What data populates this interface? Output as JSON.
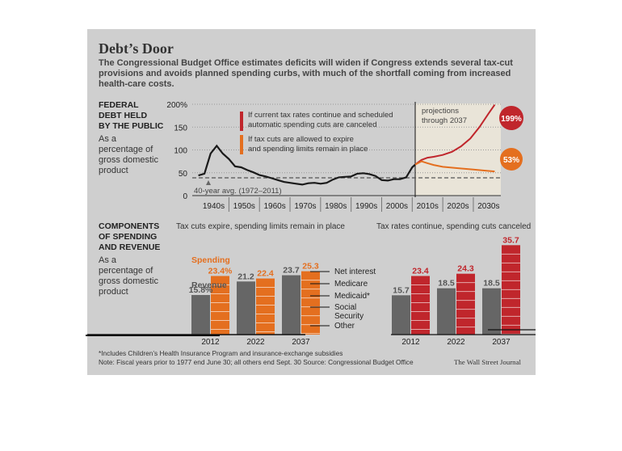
{
  "title": "Debt’s Door",
  "subtitle": "The Congressional Budget Office estimates deficits will widen if Congress extends several tax-cut provisions and avoids planned spending curbs, with much of the shortfall coming from increased health-care costs.",
  "debt_section": {
    "heading_lines": [
      "FEDERAL",
      "DEBT HELD",
      "BY THE PUBLIC"
    ],
    "desc_lines": [
      "As a",
      "percentage of",
      "gross domestic",
      "product"
    ]
  },
  "legend": {
    "red_lines": [
      "If current tax rates continue and scheduled",
      "automatic spending cuts are canceled"
    ],
    "orange_lines": [
      "If tax cuts are allowed to expire",
      "and spending limits remain in place"
    ]
  },
  "projections_lines": [
    "projections",
    "through 2037"
  ],
  "avg_label": "40-year avg. (1972–2011)",
  "components_section": {
    "heading_lines": [
      "COMPONENTS",
      "OF SPENDING",
      "AND REVENUE"
    ],
    "desc_lines": [
      "As a",
      "percentage of",
      "gross domestic",
      "product"
    ],
    "left_title": "Tax cuts expire, spending limits remain in place",
    "right_title": "Tax rates continue, spending cuts canceled",
    "revenue_label": "Revenue",
    "spending_label": "Spending",
    "components": [
      "Net interest",
      "Medicare",
      "Medicaid*",
      "Social Security",
      "Other"
    ]
  },
  "footnotes": {
    "line1": "*Includes Children’s Health Insurance Program and insurance-exchange subsidies",
    "line2": "Note: Fiscal years prior to 1977 end June 30; all others end Sept. 30   Source: Congressional Budget Office",
    "credit": "The Wall Street Journal"
  },
  "colors": {
    "red": "#c0262c",
    "orange": "#e46f1f",
    "revenue_gray": "#666666",
    "line_black": "#1a1a1a",
    "panel_bg": "#cfcfcf"
  },
  "chart_data": [
    {
      "type": "line",
      "title": "FEDERAL DEBT HELD BY THE PUBLIC",
      "ylabel": "As a percentage of gross domestic product",
      "ylim": [
        0,
        200
      ],
      "yticks": [
        "200%",
        "150",
        "100",
        "50",
        "0"
      ],
      "xlabels": [
        "1940s",
        "1950s",
        "1960s",
        "1970s",
        "1980s",
        "1990s",
        "2000s",
        "2010s",
        "2020s",
        "2030s"
      ],
      "series": [
        {
          "name": "historical",
          "x": [
            1940,
            1942,
            1944,
            1946,
            1948,
            1950,
            1952,
            1954,
            1956,
            1958,
            1960,
            1962,
            1964,
            1966,
            1968,
            1970,
            1972,
            1974,
            1976,
            1978,
            1980,
            1982,
            1984,
            1986,
            1988,
            1990,
            1992,
            1994,
            1996,
            1998,
            2000,
            2002,
            2004,
            2006,
            2008,
            2010,
            2011
          ],
          "y": [
            44,
            48,
            92,
            109,
            92,
            80,
            64,
            62,
            56,
            51,
            45,
            42,
            38,
            34,
            30,
            28,
            26,
            24,
            27,
            28,
            26,
            28,
            35,
            40,
            41,
            42,
            48,
            49,
            47,
            43,
            34,
            33,
            36,
            36,
            40,
            62,
            68
          ]
        },
        {
          "name": "If current tax rates continue and scheduled automatic spending cuts are canceled",
          "x": [
            2011,
            2013,
            2015,
            2017,
            2020,
            2023,
            2026,
            2029,
            2032,
            2035,
            2037
          ],
          "y": [
            68,
            78,
            83,
            85,
            89,
            96,
            108,
            125,
            150,
            180,
            199
          ]
        },
        {
          "name": "If tax cuts are allowed to expire and spending limits remain in place",
          "x": [
            2011,
            2013,
            2015,
            2017,
            2020,
            2025,
            2030,
            2035,
            2037
          ],
          "y": [
            68,
            75,
            71,
            67,
            63,
            60,
            57,
            54,
            53
          ]
        }
      ],
      "reference_line": {
        "label": "40-year avg. (1972–2011)",
        "y": 39
      },
      "end_labels": [
        "199%",
        "53%"
      ]
    },
    {
      "type": "bar",
      "title": "Tax cuts expire, spending limits remain in place",
      "categories": [
        "2012",
        "2022",
        "2037"
      ],
      "series": [
        {
          "name": "Revenue",
          "values": [
            15.8,
            21.2,
            23.7
          ],
          "labels": [
            "15.8%",
            "21.2",
            "23.7"
          ]
        },
        {
          "name": "Spending",
          "values": [
            23.4,
            22.4,
            25.3
          ],
          "labels": [
            "23.4%",
            "22.4",
            "25.3"
          ]
        }
      ],
      "ylim": [
        0,
        36
      ]
    },
    {
      "type": "bar",
      "title": "Tax rates continue, spending cuts canceled",
      "categories": [
        "2012",
        "2022",
        "2037"
      ],
      "series": [
        {
          "name": "Revenue",
          "values": [
            15.7,
            18.5,
            18.5
          ],
          "labels": [
            "15.7",
            "18.5",
            "18.5"
          ]
        },
        {
          "name": "Spending",
          "values": [
            23.4,
            24.3,
            35.7
          ],
          "labels": [
            "23.4",
            "24.3",
            "35.7"
          ]
        }
      ],
      "ylim": [
        0,
        36
      ]
    }
  ]
}
